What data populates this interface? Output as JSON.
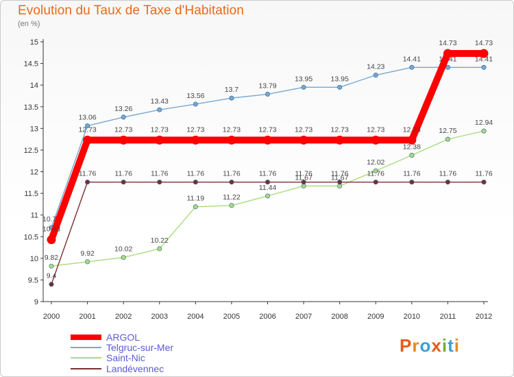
{
  "title": "Evolution du Taux de Taxe d'Habitation",
  "unit": "(en %)",
  "brand": {
    "text": "Proxiti",
    "letters": [
      "P",
      "r",
      "o",
      "x",
      "i",
      "t",
      "i"
    ],
    "colors": [
      "#e85a1a",
      "#e88a1a",
      "#3aa0d8",
      "#e85a1a",
      "#70b030",
      "#3aa0d8",
      "#e88a1a"
    ]
  },
  "chart_data": {
    "type": "line",
    "title": "Evolution du Taux de Taxe d'Habitation",
    "ylabel": "(en %)",
    "x": [
      "2000",
      "2001",
      "2002",
      "2003",
      "2004",
      "2005",
      "2006",
      "2007",
      "2008",
      "2009",
      "2010",
      "2011",
      "2012"
    ],
    "ylim": [
      9,
      15
    ],
    "yticks": [
      "9",
      "9.5",
      "10",
      "10.5",
      "11",
      "11.5",
      "12",
      "12.5",
      "13",
      "13.5",
      "14",
      "14.5",
      "15"
    ],
    "grid": false,
    "legend_position": "bottom-left",
    "series": [
      {
        "name": "ARGOL",
        "color": "#ff0000",
        "values": [
          10.43,
          12.73,
          12.73,
          12.73,
          12.73,
          12.73,
          12.73,
          12.73,
          12.73,
          12.73,
          12.73,
          14.73,
          14.73
        ],
        "labels": [
          "10.43",
          "12.73",
          "12.73",
          "12.73",
          "12.73",
          "12.73",
          "12.73",
          "12.73",
          "12.73",
          "12.73",
          "12.73",
          "14.73",
          "14.73"
        ]
      },
      {
        "name": "Telgruc-sur-Mer",
        "color": "#74a7d4",
        "values": [
          10.71,
          13.06,
          13.26,
          13.43,
          13.56,
          13.7,
          13.79,
          13.95,
          13.95,
          14.23,
          14.41,
          14.41,
          14.41
        ],
        "labels": [
          "10.71",
          "13.06",
          "13.26",
          "13.43",
          "13.56",
          "13.7",
          "13.79",
          "13.95",
          "13.95",
          "14.23",
          "14.41",
          "14.41",
          "14.41"
        ]
      },
      {
        "name": "Saint-Nic",
        "color": "#a8dc7a",
        "values": [
          9.82,
          9.92,
          10.02,
          10.22,
          11.19,
          11.22,
          11.44,
          11.67,
          11.67,
          12.02,
          12.38,
          12.75,
          12.94
        ],
        "labels": [
          "9.82",
          "9.92",
          "10.02",
          "10.22",
          "11.19",
          "11.22",
          "11.44",
          "11.67",
          "11.67",
          "12.02",
          "12.38",
          "12.75",
          "12.94"
        ]
      },
      {
        "name": "Landévennec",
        "color": "#7a2f2f",
        "values": [
          9.4,
          11.76,
          11.76,
          11.76,
          11.76,
          11.76,
          11.76,
          11.76,
          11.76,
          11.76,
          11.76,
          11.76,
          11.76
        ],
        "labels": [
          "9.4",
          "11.76",
          "11.76",
          "11.76",
          "11.76",
          "11.76",
          "11.76",
          "11.76",
          "11.76",
          "11.76",
          "11.76",
          "11.76",
          "11.76"
        ]
      }
    ]
  }
}
